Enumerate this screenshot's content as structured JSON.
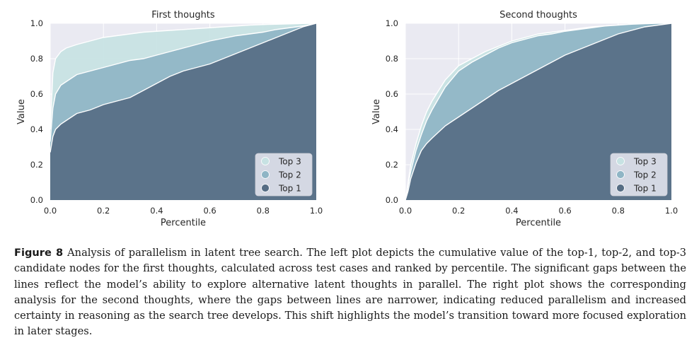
{
  "chart_data": [
    {
      "type": "area",
      "title": "First thoughts",
      "xlabel": "Percentile",
      "ylabel": "Value",
      "xlim": [
        0.0,
        1.0
      ],
      "ylim": [
        0.0,
        1.0
      ],
      "xticks": [
        "0.0",
        "0.2",
        "0.4",
        "0.6",
        "0.8",
        "1.0"
      ],
      "yticks": [
        "0.0",
        "0.2",
        "0.4",
        "0.6",
        "0.8",
        "1.0"
      ],
      "grid": true,
      "legend_position": "lower-right",
      "x": [
        0.0,
        0.01,
        0.02,
        0.04,
        0.06,
        0.08,
        0.1,
        0.15,
        0.2,
        0.25,
        0.3,
        0.35,
        0.4,
        0.45,
        0.5,
        0.55,
        0.6,
        0.65,
        0.7,
        0.75,
        0.8,
        0.85,
        0.9,
        0.95,
        1.0
      ],
      "series": [
        {
          "name": "Top 3",
          "color": "#c7e2e3",
          "values": [
            0.4,
            0.72,
            0.8,
            0.84,
            0.86,
            0.87,
            0.88,
            0.9,
            0.92,
            0.93,
            0.94,
            0.95,
            0.955,
            0.96,
            0.965,
            0.97,
            0.975,
            0.98,
            0.985,
            0.99,
            0.993,
            0.995,
            0.997,
            0.999,
            1.0
          ]
        },
        {
          "name": "Top 2",
          "color": "#8fb5c5",
          "values": [
            0.33,
            0.52,
            0.6,
            0.65,
            0.67,
            0.69,
            0.71,
            0.73,
            0.75,
            0.77,
            0.79,
            0.8,
            0.82,
            0.84,
            0.86,
            0.88,
            0.9,
            0.915,
            0.93,
            0.94,
            0.95,
            0.965,
            0.975,
            0.985,
            1.0
          ]
        },
        {
          "name": "Top 1",
          "color": "#566d84",
          "values": [
            0.27,
            0.36,
            0.4,
            0.43,
            0.45,
            0.47,
            0.49,
            0.51,
            0.54,
            0.56,
            0.58,
            0.62,
            0.66,
            0.7,
            0.73,
            0.75,
            0.77,
            0.8,
            0.83,
            0.86,
            0.89,
            0.92,
            0.95,
            0.98,
            1.0
          ]
        }
      ]
    },
    {
      "type": "area",
      "title": "Second thoughts",
      "xlabel": "Percentile",
      "ylabel": "Value",
      "xlim": [
        0.0,
        1.0
      ],
      "ylim": [
        0.0,
        1.0
      ],
      "xticks": [
        "0.0",
        "0.2",
        "0.4",
        "0.6",
        "0.8",
        "1.0"
      ],
      "yticks": [
        "0.0",
        "0.2",
        "0.4",
        "0.6",
        "0.8",
        "1.0"
      ],
      "grid": true,
      "legend_position": "lower-right",
      "x": [
        0.0,
        0.01,
        0.02,
        0.04,
        0.06,
        0.08,
        0.1,
        0.15,
        0.2,
        0.25,
        0.3,
        0.35,
        0.4,
        0.45,
        0.5,
        0.55,
        0.6,
        0.65,
        0.7,
        0.75,
        0.8,
        0.85,
        0.9,
        0.95,
        1.0
      ],
      "series": [
        {
          "name": "Top 3",
          "color": "#c7e2e3",
          "values": [
            0.0,
            0.1,
            0.2,
            0.32,
            0.42,
            0.5,
            0.56,
            0.68,
            0.76,
            0.8,
            0.84,
            0.87,
            0.9,
            0.92,
            0.94,
            0.95,
            0.96,
            0.97,
            0.98,
            0.985,
            0.99,
            0.995,
            0.998,
            1.0,
            1.0
          ]
        },
        {
          "name": "Top 2",
          "color": "#8fb5c5",
          "values": [
            0.0,
            0.08,
            0.16,
            0.28,
            0.37,
            0.45,
            0.51,
            0.64,
            0.73,
            0.78,
            0.82,
            0.86,
            0.89,
            0.91,
            0.93,
            0.94,
            0.955,
            0.965,
            0.975,
            0.985,
            0.99,
            0.995,
            0.998,
            1.0,
            1.0
          ]
        },
        {
          "name": "Top 1",
          "color": "#566d84",
          "values": [
            0.0,
            0.05,
            0.12,
            0.21,
            0.28,
            0.32,
            0.35,
            0.42,
            0.47,
            0.52,
            0.57,
            0.62,
            0.66,
            0.7,
            0.74,
            0.78,
            0.82,
            0.85,
            0.88,
            0.91,
            0.94,
            0.96,
            0.98,
            0.99,
            1.0
          ]
        }
      ]
    }
  ],
  "caption": {
    "label": "Figure 8",
    "text": "Analysis of parallelism in latent tree search. The left plot depicts the cumulative value of the top-1, top-2, and top-3 candidate nodes for the first thoughts, calculated across test cases and ranked by percentile. The significant gaps between the lines reflect the model’s ability to explore alternative latent thoughts in parallel. The right plot shows the corresponding analysis for the second thoughts, where the gaps between lines are narrower, indicating reduced parallelism and increased certainty in reasoning as the search tree develops. This shift highlights the model’s transition toward more focused exploration in later stages."
  }
}
